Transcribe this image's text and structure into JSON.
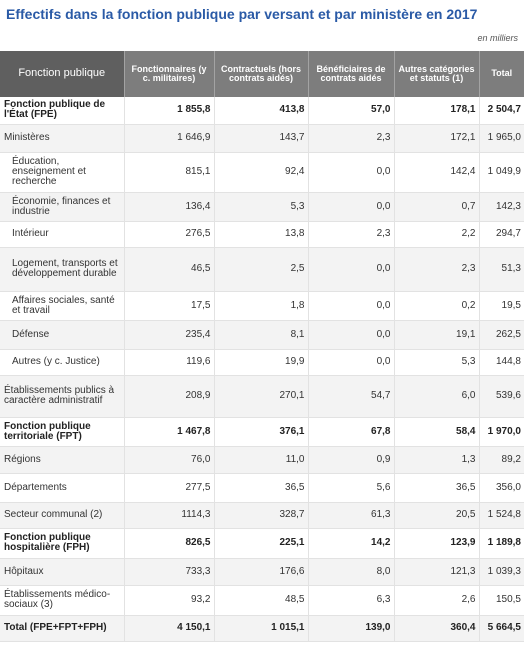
{
  "title": "Effectifs dans la fonction publique par versant et par ministère en 2017",
  "unit": "en milliers",
  "columns": [
    "Fonction publique",
    "Fonctionnaires (y c. militaires)",
    "Contractuels (hors contrats aidés)",
    "Bénéficiaires de contrats aidés",
    "Autres catégories et statuts (1)",
    "Total"
  ],
  "rows": [
    {
      "label": "Fonction publique de l'État (FPE)",
      "values": [
        "1 855,8",
        "413,8",
        "57,0",
        "178,1",
        "2 504,7"
      ],
      "bold": true,
      "indent": false
    },
    {
      "label": "Ministères",
      "values": [
        "1 646,9",
        "143,7",
        "2,3",
        "172,1",
        "1 965,0"
      ],
      "bold": false,
      "indent": false
    },
    {
      "label": "Éducation, enseignement et recherche",
      "values": [
        "815,1",
        "92,4",
        "0,0",
        "142,4",
        "1 049,9"
      ],
      "bold": false,
      "indent": true
    },
    {
      "label": "Économie, finances et industrie",
      "values": [
        "136,4",
        "5,3",
        "0,0",
        "0,7",
        "142,3"
      ],
      "bold": false,
      "indent": true
    },
    {
      "label": "Intérieur",
      "values": [
        "276,5",
        "13,8",
        "2,3",
        "2,2",
        "294,7"
      ],
      "bold": false,
      "indent": true
    },
    {
      "label": "Logement, transports et développement durable",
      "values": [
        "46,5",
        "2,5",
        "0,0",
        "2,3",
        "51,3"
      ],
      "bold": false,
      "indent": true
    },
    {
      "label": "Affaires sociales, santé et travail",
      "values": [
        "17,5",
        "1,8",
        "0,0",
        "0,2",
        "19,5"
      ],
      "bold": false,
      "indent": true
    },
    {
      "label": "Défense",
      "values": [
        "235,4",
        "8,1",
        "0,0",
        "19,1",
        "262,5"
      ],
      "bold": false,
      "indent": true
    },
    {
      "label": "Autres (y c. Justice)",
      "values": [
        "119,6",
        "19,9",
        "0,0",
        "5,3",
        "144,8"
      ],
      "bold": false,
      "indent": true
    },
    {
      "label": "Établissements publics à caractère administratif",
      "values": [
        "208,9",
        "270,1",
        "54,7",
        "6,0",
        "539,6"
      ],
      "bold": false,
      "indent": false
    },
    {
      "label": "Fonction publique territoriale (FPT)",
      "values": [
        "1 467,8",
        "376,1",
        "67,8",
        "58,4",
        "1 970,0"
      ],
      "bold": true,
      "indent": false
    },
    {
      "label": "Régions",
      "values": [
        "76,0",
        "11,0",
        "0,9",
        "1,3",
        "89,2"
      ],
      "bold": false,
      "indent": false
    },
    {
      "label": "Départements",
      "values": [
        "277,5",
        "36,5",
        "5,6",
        "36,5",
        "356,0"
      ],
      "bold": false,
      "indent": false
    },
    {
      "label": "Secteur communal (2)",
      "values": [
        "1114,3",
        "328,7",
        "61,3",
        "20,5",
        "1 524,8"
      ],
      "bold": false,
      "indent": false
    },
    {
      "label": "Fonction publique hospitalière (FPH)",
      "values": [
        "826,5",
        "225,1",
        "14,2",
        "123,9",
        "1 189,8"
      ],
      "bold": true,
      "indent": false
    },
    {
      "label": "Hôpitaux",
      "values": [
        "733,3",
        "176,6",
        "8,0",
        "121,3",
        "1 039,3"
      ],
      "bold": false,
      "indent": false
    },
    {
      "label": "Établissements médico-sociaux (3)",
      "values": [
        "93,2",
        "48,5",
        "6,3",
        "2,6",
        "150,5"
      ],
      "bold": false,
      "indent": false
    },
    {
      "label": "Total (FPE+FPT+FPH)",
      "values": [
        "4 150,1",
        "1 015,1",
        "139,0",
        "360,4",
        "5 664,5"
      ],
      "bold": true,
      "indent": false
    }
  ]
}
